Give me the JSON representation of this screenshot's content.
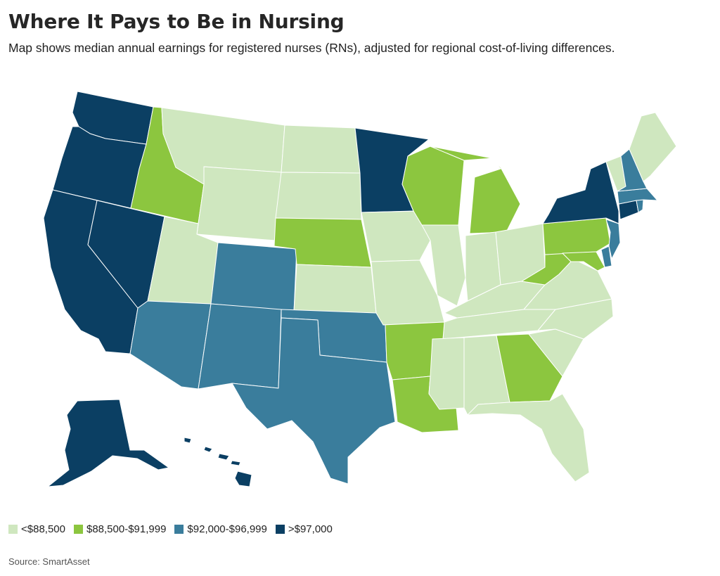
{
  "title": "Where It Pays to Be in Nursing",
  "subtitle": "Map shows median annual earnings for registered nurses (RNs), adjusted for regional cost-of-living differences.",
  "source": "Source: SmartAsset",
  "colors": {
    "low": "#cfe7bf",
    "mid_low": "#8cc63f",
    "mid_high": "#3a7d9c",
    "high": "#0b3f63"
  },
  "legend": [
    {
      "label": "<$88,500",
      "tier": "low"
    },
    {
      "label": "$88,500-$91,999",
      "tier": "mid_low"
    },
    {
      "label": "$92,000-$96,999",
      "tier": "mid_high"
    },
    {
      "label": ">$97,000",
      "tier": "high"
    }
  ],
  "states": {
    "WA": "high",
    "OR": "high",
    "CA": "high",
    "NV": "high",
    "AK": "high",
    "HI": "high",
    "MN": "high",
    "NY": "high",
    "CT": "high",
    "AZ": "mid_high",
    "NM": "mid_high",
    "CO": "mid_high",
    "OK": "mid_high",
    "TX": "mid_high",
    "NH": "mid_high",
    "MA": "mid_high",
    "RI": "mid_high",
    "NJ": "mid_high",
    "DE": "mid_high",
    "ID": "mid_low",
    "NE": "mid_low",
    "WI": "mid_low",
    "MI": "mid_low",
    "AR": "mid_low",
    "LA": "mid_low",
    "GA": "mid_low",
    "PA": "mid_low",
    "WV": "mid_low",
    "MD": "mid_low",
    "MT": "low",
    "WY": "low",
    "UT": "low",
    "ND": "low",
    "SD": "low",
    "KS": "low",
    "IA": "low",
    "MO": "low",
    "IL": "low",
    "IN": "low",
    "OH": "low",
    "KY": "low",
    "TN": "low",
    "MS": "low",
    "AL": "low",
    "FL": "low",
    "SC": "low",
    "NC": "low",
    "VA": "low",
    "ME": "low",
    "VT": "low"
  }
}
